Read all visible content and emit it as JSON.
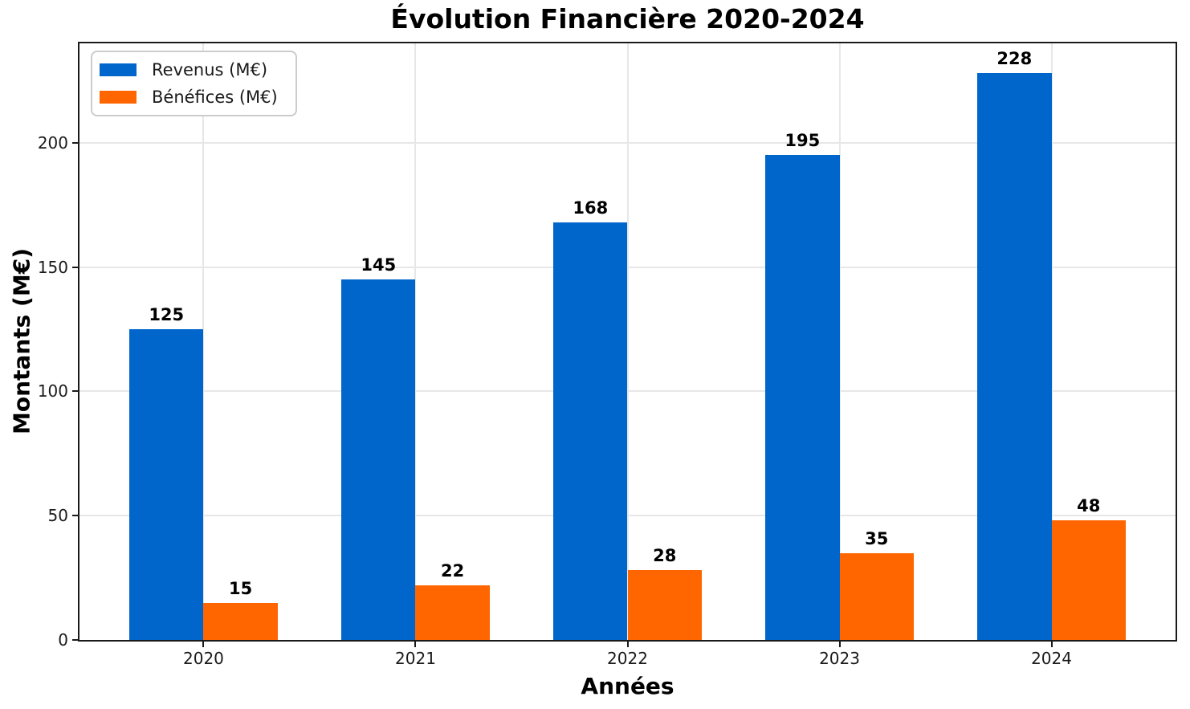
{
  "chart_data": {
    "type": "bar",
    "title": "Évolution Financière 2020-2024",
    "xlabel": "Années",
    "ylabel": "Montants (M€)",
    "categories": [
      "2020",
      "2021",
      "2022",
      "2023",
      "2024"
    ],
    "series": [
      {
        "key": "revenus",
        "name": "Revenus (M€)",
        "color": "#0066cc",
        "values": [
          125,
          145,
          168,
          195,
          228
        ]
      },
      {
        "key": "benefices",
        "name": "Bénéfices (M€)",
        "color": "#ff6600",
        "values": [
          15,
          22,
          28,
          35,
          48
        ]
      }
    ],
    "ylim": [
      0,
      240
    ],
    "yticks": [
      0,
      50,
      100,
      150,
      200
    ],
    "bar_width": 0.35,
    "x_margin": 0.05,
    "grid": true,
    "grid_color": "#e7e7e7",
    "axis_color": "#1a1a1a",
    "legend_position": "upper left",
    "value_labels": true
  }
}
